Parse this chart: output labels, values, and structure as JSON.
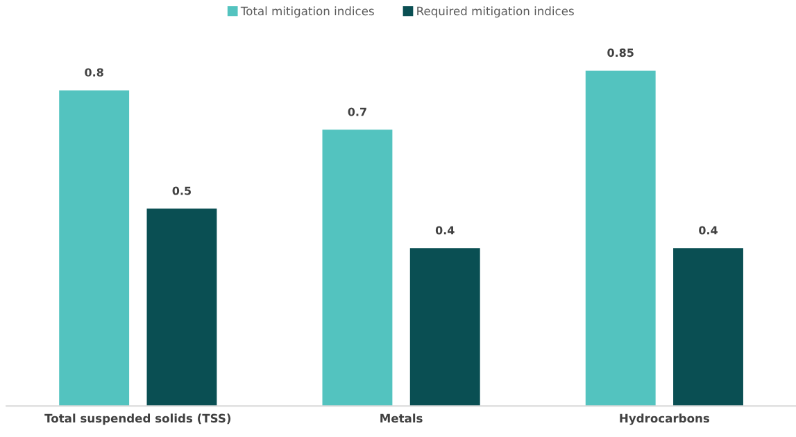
{
  "chart_data": {
    "type": "bar",
    "categories": [
      "Total suspended solids (TSS)",
      "Metals",
      "Hydrocarbons"
    ],
    "series": [
      {
        "name": "Total mitigation indices",
        "color": "#53c3bf",
        "values": [
          0.8,
          0.7,
          0.85
        ]
      },
      {
        "name": "Required mitigation indices",
        "color": "#0a4f53",
        "values": [
          0.5,
          0.4,
          0.4
        ]
      }
    ],
    "data_labels": true,
    "legend": "top",
    "grid": false,
    "tick_labels": "x"
  }
}
